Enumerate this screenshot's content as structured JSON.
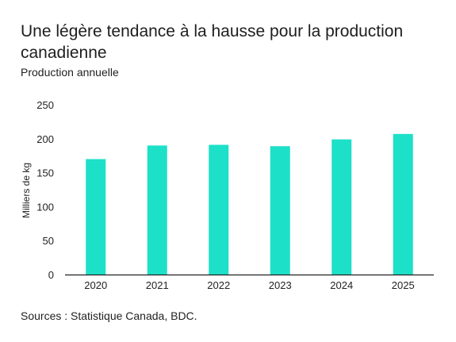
{
  "header": {
    "title": "Une légère tendance à la hausse pour la production canadienne",
    "subtitle": "Production annuelle"
  },
  "footer": {
    "source": "Sources : Statistique Canada, BDC."
  },
  "colors": {
    "bar": "#1de0c8",
    "axis": "#222222"
  },
  "chart_data": {
    "type": "bar",
    "title": "Une légère tendance à la hausse pour la production canadienne",
    "subtitle": "Production annuelle",
    "categories": [
      "2020",
      "2021",
      "2022",
      "2023",
      "2024",
      "2025"
    ],
    "values": [
      170,
      190,
      191,
      189,
      199,
      207
    ],
    "xlabel": "",
    "ylabel": "Milliers de kg",
    "ylim": [
      0,
      250
    ],
    "yticks": [
      0,
      50,
      100,
      150,
      200,
      250
    ],
    "grid": false,
    "legend": "none"
  }
}
